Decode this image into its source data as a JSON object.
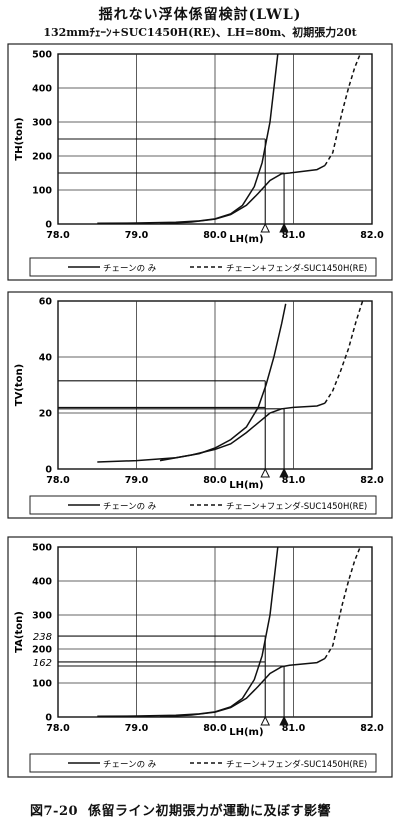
{
  "header": {
    "title": "揺れない浮体係留検討(LWL)",
    "subtitle": "132mmﾁｪｰﾝ+SUC1450H(RE)、LH=80m、初期張力20t"
  },
  "caption": {
    "number": "図7-20",
    "text": "係留ライン初期張力が運動に及ぼす影響"
  },
  "chart_data": [
    {
      "type": "line",
      "ylabel": "TH(ton)",
      "xlabel": "LH(m)",
      "xlim": [
        78.0,
        82.0
      ],
      "ylim": [
        0,
        500
      ],
      "xticks": [
        "78.0",
        "79.0",
        "80.0",
        "81.0",
        "82.0"
      ],
      "yticks": [
        "0",
        "100",
        "200",
        "300",
        "400",
        "500"
      ],
      "extra_ytick_labels": [],
      "markers": {
        "open_triangle_x": 80.64,
        "filled_triangle_x": 80.88
      },
      "legend": [
        "チェーンの み",
        "チェーン+フェンダ-SUC1450H(RE)"
      ],
      "series": [
        {
          "name": "チェーンの み",
          "style": "solid",
          "x": [
            78.5,
            79.0,
            79.5,
            79.8,
            80.0,
            80.2,
            80.35,
            80.5,
            80.6,
            80.7,
            80.76,
            80.8
          ],
          "y": [
            2,
            3,
            5,
            9,
            15,
            30,
            55,
            110,
            180,
            300,
            420,
            500
          ]
        },
        {
          "name": "チェーン+フェンダ-SUC1450H(RE)",
          "style": "solid",
          "x": [
            79.3,
            79.7,
            80.0,
            80.2,
            80.4,
            80.55,
            80.7,
            80.85,
            80.95,
            81.3,
            81.4
          ],
          "y": [
            1,
            6,
            14,
            28,
            55,
            90,
            128,
            148,
            150,
            160,
            172
          ]
        },
        {
          "name": "チェーン+フェンダ-SUC1450H(RE)",
          "style": "dashed",
          "x": [
            81.4,
            81.5,
            81.55,
            81.62,
            81.7,
            81.78,
            81.85
          ],
          "y": [
            172,
            210,
            260,
            330,
            400,
            460,
            500
          ]
        }
      ],
      "hlines": [
        {
          "y": 250,
          "x_end": 80.64
        },
        {
          "y": 150,
          "x_end": 80.64
        },
        {
          "y": 150,
          "x_end": 80.88
        }
      ],
      "vlines": [
        {
          "x": 80.64,
          "y_top": 250
        },
        {
          "x": 80.88,
          "y_top": 150
        }
      ]
    },
    {
      "type": "line",
      "ylabel": "TV(ton)",
      "xlabel": "LH(m)",
      "xlim": [
        78.0,
        82.0
      ],
      "ylim": [
        0,
        60
      ],
      "xticks": [
        "78.0",
        "79.0",
        "80.0",
        "81.0",
        "82.0"
      ],
      "yticks": [
        "0",
        "20",
        "40",
        "60"
      ],
      "extra_ytick_labels": [],
      "markers": {
        "open_triangle_x": 80.64,
        "filled_triangle_x": 80.88
      },
      "legend": [
        "チェーンの み",
        "チェーン+フェンダ-SUC1450H(RE)"
      ],
      "series": [
        {
          "name": "チェーンの み",
          "style": "solid",
          "x": [
            78.5,
            79.0,
            79.5,
            79.8,
            80.0,
            80.2,
            80.4,
            80.55,
            80.65,
            80.75,
            80.85,
            80.9
          ],
          "y": [
            2.5,
            3,
            4,
            5.5,
            7.5,
            10.5,
            15,
            22,
            30,
            40,
            52,
            59
          ]
        },
        {
          "name": "チェーン+フェンダ-SUC1450H(RE)",
          "style": "solid",
          "x": [
            79.3,
            79.7,
            80.0,
            80.2,
            80.4,
            80.55,
            80.7,
            80.85,
            81.0,
            81.3,
            81.4
          ],
          "y": [
            3,
            5,
            7,
            9,
            13,
            16.5,
            20,
            21.5,
            22,
            22.5,
            23.5
          ]
        },
        {
          "name": "チェーン+フェンダ-SUC1450H(RE)",
          "style": "dashed",
          "x": [
            81.4,
            81.5,
            81.6,
            81.7,
            81.8,
            81.88
          ],
          "y": [
            23.5,
            28,
            35,
            43,
            53,
            60
          ]
        }
      ],
      "hlines": [
        {
          "y": 31.5,
          "x_end": 80.64
        },
        {
          "y": 22,
          "x_end": 80.64
        },
        {
          "y": 21.5,
          "x_end": 80.88
        }
      ],
      "vlines": [
        {
          "x": 80.64,
          "y_top": 31.5
        },
        {
          "x": 80.88,
          "y_top": 21.5
        }
      ]
    },
    {
      "type": "line",
      "ylabel": "TA(ton)",
      "xlabel": "LH(m)",
      "xlim": [
        78.0,
        82.0
      ],
      "ylim": [
        0,
        500
      ],
      "xticks": [
        "78.0",
        "79.0",
        "80.0",
        "81.0",
        "82.0"
      ],
      "yticks": [
        "0",
        "100",
        "200",
        "300",
        "400",
        "500"
      ],
      "extra_ytick_labels": [
        {
          "label": "238",
          "y": 238
        },
        {
          "label": "162",
          "y": 162
        }
      ],
      "markers": {
        "open_triangle_x": 80.64,
        "filled_triangle_x": 80.88
      },
      "legend": [
        "チェーンの み",
        "チェーン+フェンダ-SUC1450H(RE)"
      ],
      "series": [
        {
          "name": "チェーンの み",
          "style": "solid",
          "x": [
            78.5,
            79.0,
            79.5,
            79.8,
            80.0,
            80.2,
            80.35,
            80.5,
            80.6,
            80.7,
            80.76,
            80.8
          ],
          "y": [
            2,
            3,
            5,
            9,
            15,
            30,
            55,
            110,
            180,
            300,
            420,
            500
          ]
        },
        {
          "name": "チェーン+フェンダ-SUC1450H(RE)",
          "style": "solid",
          "x": [
            79.3,
            79.7,
            80.0,
            80.2,
            80.4,
            80.55,
            80.7,
            80.85,
            80.95,
            81.3,
            81.4
          ],
          "y": [
            1,
            6,
            14,
            28,
            55,
            90,
            128,
            148,
            152,
            160,
            172
          ]
        },
        {
          "name": "チェーン+フェンダ-SUC1450H(RE)",
          "style": "dashed",
          "x": [
            81.4,
            81.5,
            81.55,
            81.62,
            81.7,
            81.78,
            81.85
          ],
          "y": [
            172,
            210,
            260,
            330,
            400,
            460,
            500
          ]
        }
      ],
      "hlines": [
        {
          "y": 238,
          "x_end": 80.64
        },
        {
          "y": 162,
          "x_end": 80.64
        },
        {
          "y": 150,
          "x_end": 80.88
        }
      ],
      "vlines": [
        {
          "x": 80.64,
          "y_top": 238
        },
        {
          "x": 80.88,
          "y_top": 150
        }
      ]
    }
  ]
}
